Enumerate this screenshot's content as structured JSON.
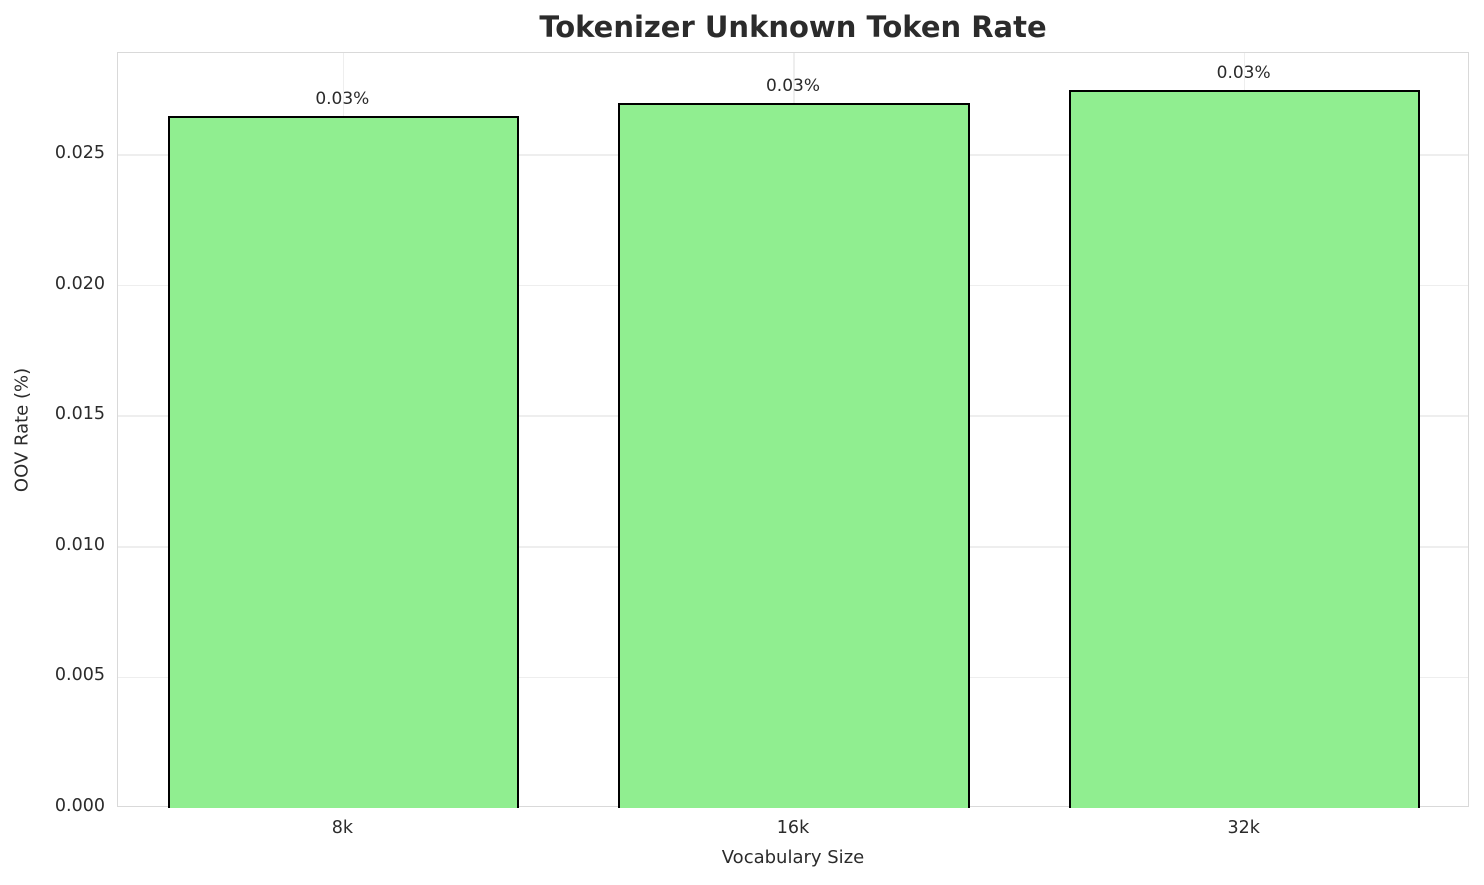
{
  "chart_data": {
    "type": "bar",
    "title": "Tokenizer Unknown Token Rate",
    "xlabel": "Vocabulary Size",
    "ylabel": "OOV Rate (%)",
    "categories": [
      "8k",
      "16k",
      "32k"
    ],
    "values": [
      0.0265,
      0.027,
      0.0275
    ],
    "bar_labels": [
      "0.03%",
      "0.03%",
      "0.03%"
    ],
    "yticks": [
      0,
      0.005,
      0.01,
      0.015,
      0.02,
      0.025
    ],
    "ytick_labels": [
      "0.000",
      "0.005",
      "0.010",
      "0.015",
      "0.020",
      "0.025"
    ],
    "ylim": [
      0,
      0.0289
    ],
    "grid": true,
    "legend_position": "none",
    "colors": {
      "bar_fill": "#90EE90",
      "bar_edge": "#000000",
      "grid": "#EEEEEE",
      "spine": "#D9D9D9",
      "text": "#2B2B2B",
      "background": "#FFFFFF"
    }
  }
}
